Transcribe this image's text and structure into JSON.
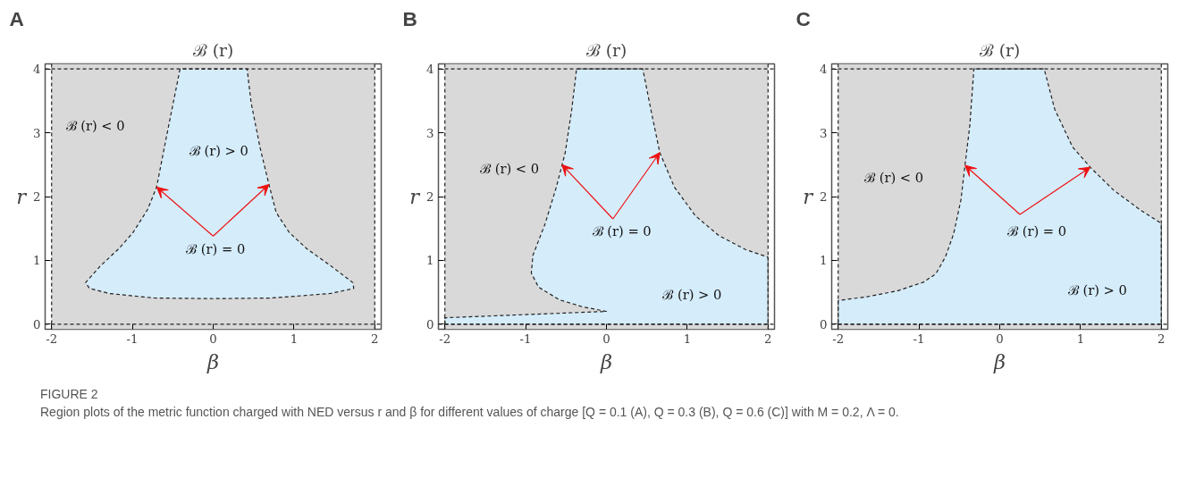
{
  "chart_data": [
    {
      "type": "area",
      "title": "A",
      "subtitle": "ℬ (r)",
      "xlabel": "β",
      "ylabel": "r",
      "xlim": [
        -2.08,
        2.08
      ],
      "ylim": [
        -0.08,
        4.08
      ],
      "xticks": [
        -2,
        -1,
        0,
        1,
        2
      ],
      "yticks": [
        0,
        1,
        2,
        3,
        4
      ],
      "grid": false,
      "tick_labels": "xy",
      "bands": [
        {
          "axis": "x",
          "from": -2,
          "to": 2,
          "color": "#d9d9d9"
        }
      ],
      "ref_lines": [
        {
          "axis": "x",
          "value": -2,
          "line_style": "dashed"
        },
        {
          "axis": "x",
          "value": 2,
          "line_style": "dashed"
        },
        {
          "axis": "y",
          "value": 0,
          "line_style": "dashed"
        },
        {
          "axis": "y",
          "value": 4,
          "line_style": "dashed"
        }
      ],
      "series": [
        {
          "color": "#d5ecfb",
          "line_style": "dashed",
          "x": [
            -0.41,
            -0.57,
            -0.7,
            -0.81,
            -0.99,
            -1.17,
            -1.39,
            -1.58,
            -1.53,
            -1.28,
            -0.73,
            0,
            0.72,
            1.45,
            1.74,
            1.73,
            1.45,
            1.16,
            0.94,
            0.78,
            0.69,
            0.58,
            0.47,
            0.42
          ],
          "values": [
            4,
            2.99,
            2.15,
            1.8,
            1.44,
            1.18,
            0.92,
            0.65,
            0.56,
            0.48,
            0.41,
            0.4,
            0.41,
            0.48,
            0.56,
            0.65,
            0.92,
            1.18,
            1.44,
            1.75,
            2.19,
            2.77,
            3.47,
            4
          ]
        }
      ],
      "annotations": [
        "ℬ (r) < 0",
        "ℬ (r) > 0",
        {
          "text": "ℬ (r) = 0",
          "x": -0.7,
          "y": 2.15
        }
      ]
    },
    {
      "type": "area",
      "title": "B",
      "subtitle": "ℬ (r)",
      "xlabel": "β",
      "ylabel": "r",
      "xlim": [
        -2.08,
        2.08
      ],
      "ylim": [
        -0.08,
        4.08
      ],
      "xticks": [
        -2,
        -1,
        0,
        1,
        2
      ],
      "yticks": [
        0,
        1,
        2,
        3,
        4
      ],
      "grid": false,
      "tick_labels": "xy",
      "bands": [
        {
          "axis": "x",
          "from": -2,
          "to": 2,
          "color": "#d9d9d9"
        }
      ],
      "ref_lines": [
        {
          "axis": "x",
          "value": -2,
          "line_style": "dashed"
        },
        {
          "axis": "x",
          "value": 2,
          "line_style": "dashed"
        },
        {
          "axis": "y",
          "value": 0,
          "line_style": "dashed"
        },
        {
          "axis": "y",
          "value": 4,
          "line_style": "dashed"
        }
      ],
      "series": [
        {
          "color": "#d5ecfb",
          "line_style": "dashed",
          "x": [
            -2,
            2,
            2,
            1.72,
            1.39,
            1.1,
            0.84,
            0.66,
            0.55,
            0.45,
            -0.37,
            -0.43,
            -0.51,
            -0.62,
            -0.76,
            -0.91,
            -0.93,
            -0.84,
            -0.58,
            -0.29,
            0.0,
            -2
          ],
          "values": [
            0,
            0,
            1.05,
            1.17,
            1.39,
            1.7,
            2.15,
            2.69,
            3.36,
            4,
            4,
            3.36,
            2.69,
            2.15,
            1.57,
            1.08,
            0.8,
            0.58,
            0.38,
            0.27,
            0.2,
            0.1
          ]
        }
      ],
      "annotations": [
        "ℬ (r) < 0",
        "ℬ (r) > 0",
        {
          "text": "ℬ (r) = 0",
          "x": -0.55,
          "y": 2.5
        }
      ]
    },
    {
      "type": "area",
      "title": "C",
      "subtitle": "ℬ (r)",
      "xlabel": "β",
      "ylabel": "r",
      "xlim": [
        -2.08,
        2.08
      ],
      "ylim": [
        -0.08,
        4.08
      ],
      "xticks": [
        -2,
        -1,
        0,
        1,
        2
      ],
      "yticks": [
        0,
        1,
        2,
        3,
        4
      ],
      "grid": false,
      "tick_labels": "xy",
      "bands": [
        {
          "axis": "x",
          "from": -2,
          "to": 2,
          "color": "#d9d9d9"
        }
      ],
      "ref_lines": [
        {
          "axis": "x",
          "value": -2,
          "line_style": "dashed"
        },
        {
          "axis": "x",
          "value": 2,
          "line_style": "dashed"
        },
        {
          "axis": "y",
          "value": 0,
          "line_style": "dashed"
        },
        {
          "axis": "y",
          "value": 4,
          "line_style": "dashed"
        }
      ],
      "series": [
        {
          "color": "#d5ecfb",
          "line_style": "dashed",
          "x": [
            -2,
            2,
            2,
            1.74,
            1.41,
            1.12,
            0.9,
            0.68,
            0.55,
            -0.32,
            -0.37,
            -0.43,
            -0.48,
            -0.57,
            -0.67,
            -0.79,
            -0.94,
            -1.27,
            -1.64,
            -2
          ],
          "values": [
            0,
            0,
            1.58,
            1.79,
            2.1,
            2.46,
            2.78,
            3.37,
            4,
            4,
            3.12,
            2.49,
            1.95,
            1.42,
            1.06,
            0.79,
            0.66,
            0.52,
            0.43,
            0.37
          ]
        }
      ],
      "annotations": [
        "ℬ (r) < 0",
        "ℬ (r) > 0",
        {
          "text": "ℬ (r) = 0",
          "x": -0.43,
          "y": 2.49
        },
        "FIGURE 2",
        "Region plots of the metric function charged with NED versus r and β for different values of charge [Q = 0.1 (A), Q = 0.3 (B), Q = 0.6 (C)] with M = 0.2, Λ = 0."
      ]
    }
  ]
}
